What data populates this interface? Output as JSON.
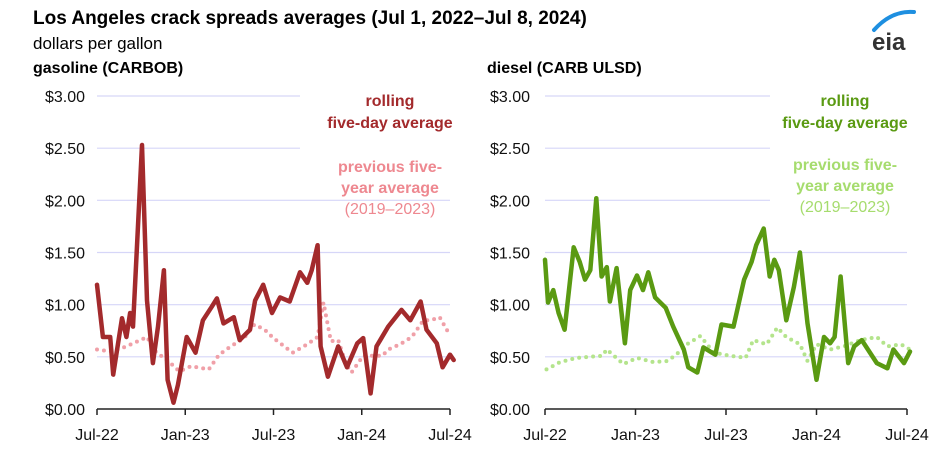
{
  "header": {
    "title": "Los Angeles crack spreads averages (Jul 1, 2022–Jul 8, 2024)",
    "unit": "dollars per gallon",
    "logo_text": "eia"
  },
  "colors": {
    "gasoline_rolling": "#a32a2c",
    "gasoline_avg": "#f0a0a8",
    "diesel_rolling": "#5a9a12",
    "diesel_avg": "#b4e48c",
    "gridline": "#d6d6f8"
  },
  "chart_data": [
    {
      "type": "line",
      "title": "gasoline (CARBOB)",
      "ylabel": "dollars per gallon",
      "ylim": [
        0,
        3
      ],
      "yticks": [
        "$0.00",
        "$0.50",
        "$1.00",
        "$1.50",
        "$2.00",
        "$2.50",
        "$3.00"
      ],
      "xticks": [
        "Jul-22",
        "Jan-23",
        "Jul-23",
        "Jan-24",
        "Jul-24"
      ],
      "x_unit": "months since Jul 1, 2022",
      "xlim": [
        0,
        24
      ],
      "grid": true,
      "legend": {
        "rolling_line1": "rolling",
        "rolling_line2": "five-day average",
        "avg_line1": "previous five-",
        "avg_line2": "year average",
        "avg_line3": "(2019–2023)"
      },
      "series": [
        {
          "name": "rolling five-day average",
          "style": "solid",
          "x": [
            0,
            0.4,
            0.9,
            1.1,
            1.7,
            2.0,
            2.25,
            2.45,
            3.06,
            3.4,
            3.8,
            4.15,
            4.55,
            4.8,
            5.2,
            5.5,
            6.1,
            6.7,
            7.2,
            7.8,
            8.15,
            8.6,
            9.3,
            9.7,
            10.4,
            10.75,
            11.3,
            11.9,
            12.45,
            13.1,
            13.8,
            14.3,
            14.6,
            15.0,
            15.2,
            15.7,
            16.4,
            17.0,
            17.7,
            18.1,
            18.6,
            19.0,
            19.8,
            20.7,
            21.3,
            22.0,
            22.4,
            23.1,
            23.5,
            24.0,
            24.25
          ],
          "y": [
            1.19,
            0.69,
            0.69,
            0.33,
            0.87,
            0.69,
            0.92,
            0.79,
            2.53,
            1.04,
            0.44,
            0.79,
            1.33,
            0.28,
            0.06,
            0.23,
            0.69,
            0.54,
            0.85,
            0.98,
            1.06,
            0.82,
            0.88,
            0.66,
            0.76,
            1.04,
            1.19,
            0.92,
            1.07,
            1.03,
            1.31,
            1.21,
            1.33,
            1.57,
            0.6,
            0.31,
            0.6,
            0.4,
            0.63,
            0.68,
            0.15,
            0.6,
            0.79,
            0.95,
            0.85,
            1.03,
            0.76,
            0.63,
            0.4,
            0.52,
            0.47
          ]
        },
        {
          "name": "previous five-year average (2019–2023)",
          "style": "dotted",
          "x": [
            0,
            1,
            2,
            3.4,
            4,
            5,
            5.6,
            6.4,
            7.6,
            8.3,
            9.1,
            10,
            10.7,
            11.4,
            12,
            13.3,
            14.3,
            15,
            15.4,
            15.6,
            15.9,
            16.4,
            16.9,
            17.3,
            18.1,
            19.4,
            19.8,
            20.6,
            21.4,
            22.2,
            22.7,
            23.3,
            23.9
          ],
          "y": [
            0.57,
            0.55,
            0.6,
            0.69,
            0.55,
            0.44,
            0.36,
            0.41,
            0.38,
            0.52,
            0.6,
            0.68,
            0.81,
            0.76,
            0.68,
            0.54,
            0.62,
            0.69,
            1.02,
            0.87,
            0.65,
            0.66,
            0.44,
            0.35,
            0.51,
            0.51,
            0.57,
            0.62,
            0.69,
            0.85,
            0.85,
            0.88,
            0.73
          ]
        }
      ]
    },
    {
      "type": "line",
      "title": "diesel (CARB ULSD)",
      "ylabel": "dollars per gallon",
      "ylim": [
        0,
        3
      ],
      "yticks": [
        "$0.00",
        "$0.50",
        "$1.00",
        "$1.50",
        "$2.00",
        "$2.50",
        "$3.00"
      ],
      "xticks": [
        "Jul-22",
        "Jan-23",
        "Jul-23",
        "Jan-24",
        "Jul-24"
      ],
      "x_unit": "months since Jul 1, 2022",
      "xlim": [
        0,
        24
      ],
      "grid": true,
      "legend": {
        "rolling_line1": "rolling",
        "rolling_line2": "five-day average",
        "avg_line1": "previous five-",
        "avg_line2": "year average",
        "avg_line3": "(2019–2023)"
      },
      "series": [
        {
          "name": "rolling five-day average",
          "style": "solid",
          "x": [
            0,
            0.2,
            0.55,
            0.9,
            1.3,
            1.9,
            2.3,
            2.65,
            3.0,
            3.4,
            3.75,
            4.1,
            4.3,
            4.75,
            5.3,
            5.65,
            6.1,
            6.5,
            6.85,
            7.3,
            8.0,
            8.5,
            9.2,
            9.5,
            10.1,
            10.5,
            11.3,
            11.7,
            12.5,
            13.2,
            13.7,
            14.0,
            14.5,
            14.9,
            15.2,
            15.5,
            16.0,
            16.5,
            16.9,
            17.4,
            18.0,
            18.5,
            18.9,
            19.2,
            19.6,
            20.1,
            20.5,
            21.0,
            22.0,
            22.7,
            23.1,
            23.8,
            24.2
          ],
          "y": [
            1.43,
            1.02,
            1.14,
            0.92,
            0.76,
            1.55,
            1.41,
            1.24,
            1.33,
            2.02,
            1.27,
            1.36,
            1.03,
            1.35,
            0.63,
            1.14,
            1.28,
            1.14,
            1.31,
            1.07,
            0.97,
            0.79,
            0.57,
            0.4,
            0.35,
            0.59,
            0.52,
            0.81,
            0.79,
            1.24,
            1.41,
            1.57,
            1.73,
            1.27,
            1.43,
            1.33,
            0.85,
            1.17,
            1.5,
            0.82,
            0.28,
            0.69,
            0.63,
            0.69,
            1.27,
            0.44,
            0.6,
            0.66,
            0.44,
            0.39,
            0.57,
            0.44,
            0.55
          ]
        },
        {
          "name": "previous five-year average (2019–2023)",
          "style": "dotted",
          "x": [
            0.1,
            1,
            2.1,
            3.8,
            4.1,
            5.2,
            6.1,
            7.2,
            8.1,
            8.7,
            9.4,
            10.3,
            11.2,
            12.3,
            13.3,
            13.8,
            14.7,
            15.4,
            16.0,
            16.9,
            17.4,
            18.0,
            18.9,
            19.8,
            20.9,
            22,
            22.7,
            23.6,
            24.2
          ],
          "y": [
            0.38,
            0.45,
            0.49,
            0.51,
            0.57,
            0.43,
            0.49,
            0.45,
            0.46,
            0.52,
            0.62,
            0.7,
            0.54,
            0.51,
            0.49,
            0.66,
            0.62,
            0.78,
            0.69,
            0.62,
            0.46,
            0.62,
            0.57,
            0.6,
            0.66,
            0.69,
            0.6,
            0.62,
            0.57
          ]
        }
      ]
    }
  ]
}
